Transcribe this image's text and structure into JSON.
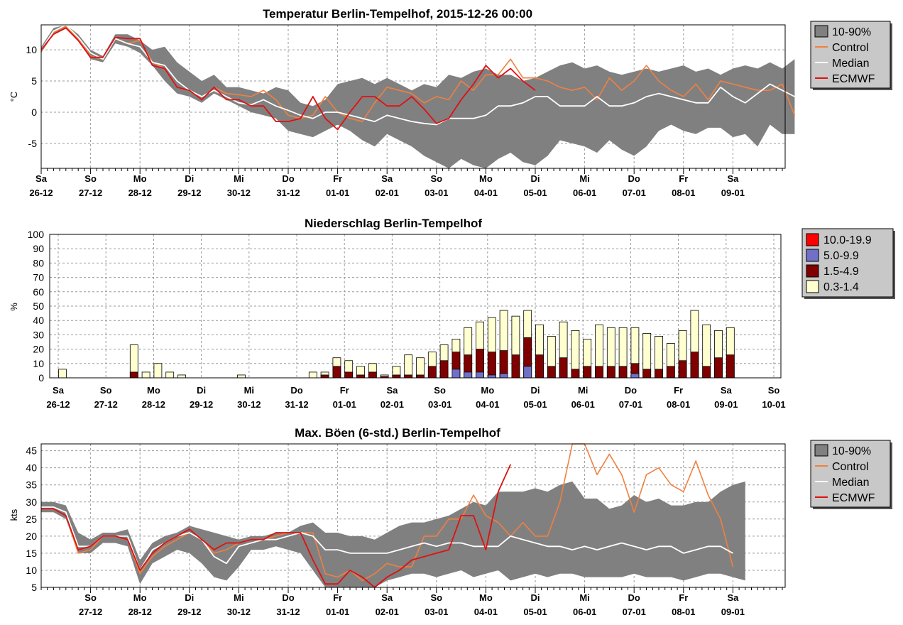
{
  "colors": {
    "band": "#808080",
    "control": "#f08040",
    "median": "#ffffff",
    "ecmwf": "#e01010",
    "legend_bg": "#c8c8c8",
    "p_10_19_9": "#ff0000",
    "p_5_9_9": "#7070c8",
    "p_1_5_4_9": "#800000",
    "p_0_3_1_4": "#ffffd0"
  },
  "chart_data": [
    {
      "id": "temp",
      "type": "line",
      "title": "Temperatur Berlin-Tempelhof, 2015-12-26 00:00",
      "ylabel": "°C",
      "ylim": [
        -9,
        14
      ],
      "yticks": [
        10,
        5,
        0,
        -5
      ],
      "x_step_hours": 6,
      "day_labels": [
        {
          "dow": "Sa",
          "date": "26-12"
        },
        {
          "dow": "So",
          "date": "27-12"
        },
        {
          "dow": "Mo",
          "date": "28-12"
        },
        {
          "dow": "Di",
          "date": "29-12"
        },
        {
          "dow": "Mi",
          "date": "30-12"
        },
        {
          "dow": "Do",
          "date": "31-12"
        },
        {
          "dow": "Fr",
          "date": "01-01"
        },
        {
          "dow": "Sa",
          "date": "02-01"
        },
        {
          "dow": "So",
          "date": "03-01"
        },
        {
          "dow": "Mo",
          "date": "04-01"
        },
        {
          "dow": "Di",
          "date": "05-01"
        },
        {
          "dow": "Mi",
          "date": "06-01"
        },
        {
          "dow": "Do",
          "date": "07-01"
        },
        {
          "dow": "Fr",
          "date": "08-01"
        },
        {
          "dow": "Sa",
          "date": "09-01"
        }
      ],
      "legend": [
        "10-90%",
        "Control",
        "Median",
        "ECMWF"
      ],
      "band_low": [
        9.5,
        12.5,
        13.5,
        11.5,
        8.5,
        8,
        11,
        10.5,
        9.5,
        7.5,
        5,
        3,
        2.5,
        1.5,
        3,
        2,
        1,
        0,
        -0.5,
        -1,
        -3,
        -3.5,
        -4,
        -3,
        -2,
        -3,
        -4.5,
        -5.5,
        -3.5,
        -4.5,
        -5.5,
        -7,
        -8,
        -9,
        -7.5,
        -8.5,
        -9,
        -7.5,
        -6.5,
        -8,
        -8.5,
        -7,
        -4.5,
        -5,
        -5.5,
        -6.5,
        -4.5,
        -6,
        -7,
        -5.5,
        -3,
        -2,
        -3,
        -3.5,
        -2.5,
        -2.5,
        -4,
        -3.5,
        -5.5,
        -2,
        -3.5,
        -3.5
      ],
      "band_high": [
        10.5,
        13.5,
        14.5,
        12.5,
        10,
        9,
        12.5,
        12.5,
        11.5,
        10,
        10.5,
        8,
        6.5,
        5,
        6,
        4,
        4,
        3.5,
        3,
        4,
        3.5,
        1.5,
        1,
        2,
        4.5,
        5,
        5.5,
        4.5,
        5.5,
        4.5,
        3.5,
        4.5,
        4,
        6,
        5.5,
        6.5,
        7,
        6,
        6,
        5,
        5.5,
        6.5,
        7.5,
        8,
        7,
        7.5,
        6.5,
        6,
        6.5,
        7,
        6.5,
        7,
        7.5,
        6.5,
        7,
        6,
        7,
        7.5,
        7,
        8,
        7,
        8.5
      ],
      "series": [
        {
          "name": "Control",
          "values": [
            9.8,
            12.8,
            13.8,
            11.8,
            9,
            8.5,
            11.8,
            11,
            11.5,
            8,
            7,
            4,
            3.5,
            2,
            4,
            3,
            2.8,
            2.5,
            3.5,
            2,
            -0.5,
            -1,
            -0.5,
            2.5,
            0,
            -1,
            -1.5,
            1.5,
            4,
            3.5,
            3,
            1.5,
            2.5,
            2,
            5,
            3.5,
            6,
            6,
            8.5,
            5.5,
            5.5,
            5,
            4,
            3.5,
            4,
            2,
            5.5,
            3.5,
            5,
            7.5,
            5,
            3.5,
            2.5,
            4.5,
            2,
            5,
            4.5,
            4,
            3.5,
            3.5,
            4.5,
            -0.5
          ]
        },
        {
          "name": "Median",
          "values": [
            10,
            13,
            14,
            12,
            9.5,
            8.5,
            11.8,
            11,
            10.5,
            8,
            7.5,
            5,
            3.5,
            2.5,
            3.5,
            2.5,
            1.5,
            1.2,
            2,
            1,
            0.3,
            -0.5,
            -1,
            0,
            0,
            -0.5,
            -1,
            -1.5,
            -0.5,
            -1,
            -1.5,
            -1.8,
            -2,
            -1,
            -1,
            -1,
            -0.5,
            1,
            1,
            1.5,
            2.5,
            2.5,
            1,
            1,
            1,
            2.5,
            1,
            1,
            1.5,
            2.5,
            3,
            2.5,
            2,
            1.5,
            1.5,
            4,
            2.5,
            1.5,
            3,
            4.5,
            3.5,
            2.5
          ]
        },
        {
          "name": "ECMWF",
          "values": [
            10,
            12.5,
            13.5,
            11.5,
            8.8,
            8.8,
            12,
            11.8,
            11.8,
            7.5,
            7,
            4,
            3.5,
            2,
            4,
            2,
            2,
            1,
            1,
            -1.5,
            -1.5,
            -1,
            2.5,
            -1,
            -2.8,
            0,
            2.5,
            2.5,
            1,
            1,
            2.5,
            0.5,
            -1.8,
            -1,
            2,
            4.5,
            7.5,
            5.5,
            7,
            5,
            3.5
          ]
        }
      ]
    },
    {
      "id": "precip",
      "type": "bar",
      "title": "Niederschlag Berlin-Tempelhof",
      "ylabel": "%",
      "ylim": [
        0,
        100
      ],
      "yticks": [
        0,
        10,
        20,
        30,
        40,
        50,
        60,
        70,
        80,
        90,
        100
      ],
      "day_labels": [
        {
          "dow": "Sa",
          "date": "26-12"
        },
        {
          "dow": "So",
          "date": "27-12"
        },
        {
          "dow": "Mo",
          "date": "28-12"
        },
        {
          "dow": "Di",
          "date": "29-12"
        },
        {
          "dow": "Mi",
          "date": "30-12"
        },
        {
          "dow": "Do",
          "date": "31-12"
        },
        {
          "dow": "Fr",
          "date": "01-01"
        },
        {
          "dow": "Sa",
          "date": "02-01"
        },
        {
          "dow": "So",
          "date": "03-01"
        },
        {
          "dow": "Mo",
          "date": "04-01"
        },
        {
          "dow": "Di",
          "date": "05-01"
        },
        {
          "dow": "Mi",
          "date": "06-01"
        },
        {
          "dow": "Do",
          "date": "07-01"
        },
        {
          "dow": "Fr",
          "date": "08-01"
        },
        {
          "dow": "Sa",
          "date": "09-01"
        },
        {
          "dow": "So",
          "date": "10-01"
        }
      ],
      "legend": [
        "10.0-19.9",
        "5.0-9.9",
        "1.5-4.9",
        "0.3-1.4"
      ],
      "totals": [
        6,
        0,
        0,
        0,
        0,
        0,
        23,
        4,
        10,
        4,
        2,
        0,
        0,
        0,
        0,
        2,
        0,
        0,
        0,
        0,
        0,
        4,
        4,
        14,
        12,
        8,
        10,
        2,
        8,
        16,
        14,
        18,
        23,
        27,
        35,
        39,
        42,
        47,
        43,
        47,
        37,
        29,
        39,
        33,
        27,
        37,
        35,
        35,
        35,
        31,
        29,
        24,
        33,
        47,
        37,
        33,
        35
      ],
      "r_1_5_4_9": [
        0,
        0,
        0,
        0,
        0,
        0,
        4,
        0,
        0,
        0,
        0,
        0,
        0,
        0,
        0,
        0,
        0,
        0,
        0,
        0,
        0,
        0,
        2,
        8,
        4,
        2,
        4,
        1,
        2,
        2,
        2,
        8,
        12,
        12,
        12,
        16,
        16,
        16,
        16,
        20,
        16,
        8,
        14,
        6,
        8,
        8,
        8,
        8,
        7,
        6,
        6,
        8,
        12,
        18,
        8,
        14,
        16
      ],
      "r_5_9_9": [
        0,
        0,
        0,
        0,
        0,
        0,
        0,
        0,
        0,
        0,
        0,
        0,
        0,
        0,
        0,
        0,
        0,
        0,
        0,
        0,
        0,
        0,
        0,
        0,
        0,
        0,
        0,
        0,
        0,
        0,
        0,
        0,
        0,
        6,
        4,
        4,
        2,
        3,
        0,
        8,
        0,
        0,
        0,
        0,
        0,
        0,
        0,
        0,
        3,
        0,
        0,
        0,
        0,
        0,
        0,
        0,
        0
      ],
      "r_10_19_9": [
        0,
        0,
        0,
        0,
        0,
        0,
        0,
        0,
        0,
        0,
        0,
        0,
        0,
        0,
        0,
        0,
        0,
        0,
        0,
        0,
        0,
        0,
        0,
        0,
        0,
        0,
        0,
        0,
        0,
        0,
        0,
        0,
        0,
        0,
        0,
        0,
        0,
        0,
        0,
        0,
        0,
        0,
        0,
        0,
        0,
        0,
        0,
        0,
        0,
        0,
        0,
        0,
        0,
        0,
        0,
        0,
        0
      ]
    },
    {
      "id": "gusts",
      "type": "line",
      "title": "Max. Böen (6-std.) Berlin-Tempelhof",
      "ylabel": "kts",
      "ylim": [
        5,
        47
      ],
      "yticks": [
        45,
        40,
        35,
        30,
        25,
        20,
        15,
        10,
        5
      ],
      "day_labels": [
        {
          "dow": "So",
          "date": "27-12"
        },
        {
          "dow": "Mo",
          "date": "28-12"
        },
        {
          "dow": "Di",
          "date": "29-12"
        },
        {
          "dow": "Mi",
          "date": "30-12"
        },
        {
          "dow": "Do",
          "date": "31-12"
        },
        {
          "dow": "Fr",
          "date": "01-01"
        },
        {
          "dow": "Sa",
          "date": "02-01"
        },
        {
          "dow": "So",
          "date": "03-01"
        },
        {
          "dow": "Mo",
          "date": "04-01"
        },
        {
          "dow": "Di",
          "date": "05-01"
        },
        {
          "dow": "Mi",
          "date": "06-01"
        },
        {
          "dow": "Do",
          "date": "07-01"
        },
        {
          "dow": "Fr",
          "date": "08-01"
        },
        {
          "dow": "Sa",
          "date": "09-01"
        }
      ],
      "legend": [
        "10-90%",
        "Control",
        "Median",
        "ECMWF"
      ],
      "band_low": [
        27,
        27,
        25,
        15,
        15,
        18,
        18,
        17,
        6,
        12,
        14,
        16,
        15,
        12,
        8,
        7,
        11,
        16,
        16,
        17,
        16,
        15,
        10,
        5,
        5,
        5,
        5,
        5,
        7,
        8,
        9,
        9,
        8,
        9,
        10,
        8,
        9,
        10,
        7,
        8,
        9,
        8,
        9,
        9,
        8,
        8,
        8,
        8,
        9,
        8,
        8,
        8,
        7,
        8,
        9,
        9,
        8,
        7
      ],
      "band_high": [
        30,
        30,
        29,
        21,
        19,
        21,
        21,
        22,
        13,
        18,
        20,
        21,
        23,
        22,
        21,
        20,
        19,
        20,
        20,
        21,
        21,
        23,
        24,
        21,
        21,
        20,
        20,
        19,
        21,
        23,
        24,
        24,
        25,
        26,
        28,
        30,
        29,
        33,
        33,
        33,
        34,
        33,
        35,
        36,
        31,
        31,
        28,
        29,
        32,
        30,
        31,
        29,
        29,
        30,
        30,
        33,
        35,
        36
      ],
      "series": [
        {
          "name": "Control",
          "values": [
            28,
            28,
            26,
            15,
            16,
            20,
            20,
            19,
            9,
            14,
            17,
            19,
            21,
            19,
            15,
            16,
            18,
            19,
            19,
            20,
            21,
            21,
            21,
            9,
            8,
            10,
            7,
            9,
            12,
            11,
            11,
            20,
            20,
            25,
            25,
            32,
            26,
            24,
            20,
            24,
            20,
            20,
            30,
            47,
            47,
            38,
            44,
            38,
            27,
            38,
            40,
            35,
            33,
            42,
            32,
            25,
            11
          ]
        },
        {
          "name": "Median",
          "values": [
            28.5,
            28.5,
            27,
            17,
            17,
            20,
            20,
            20,
            10,
            16,
            18,
            20,
            21,
            19,
            14,
            12,
            17,
            18,
            19,
            19,
            20,
            21,
            20,
            16,
            16,
            15,
            15,
            15,
            15,
            16,
            17,
            18,
            17,
            18,
            18,
            17,
            17,
            17,
            20,
            19,
            18,
            17,
            17,
            16,
            17,
            16,
            17,
            18,
            17,
            16,
            17,
            17,
            15,
            16,
            17,
            17,
            15
          ]
        },
        {
          "name": "ECMWF",
          "values": [
            28,
            28,
            26,
            16,
            17,
            20,
            20,
            19,
            10,
            15,
            18,
            20,
            22,
            19,
            16,
            18,
            18,
            19,
            19,
            21,
            21,
            21,
            13,
            6,
            6,
            10,
            8,
            5,
            8,
            10,
            13,
            14,
            15,
            16,
            26,
            26,
            16,
            33,
            41
          ]
        }
      ]
    }
  ]
}
